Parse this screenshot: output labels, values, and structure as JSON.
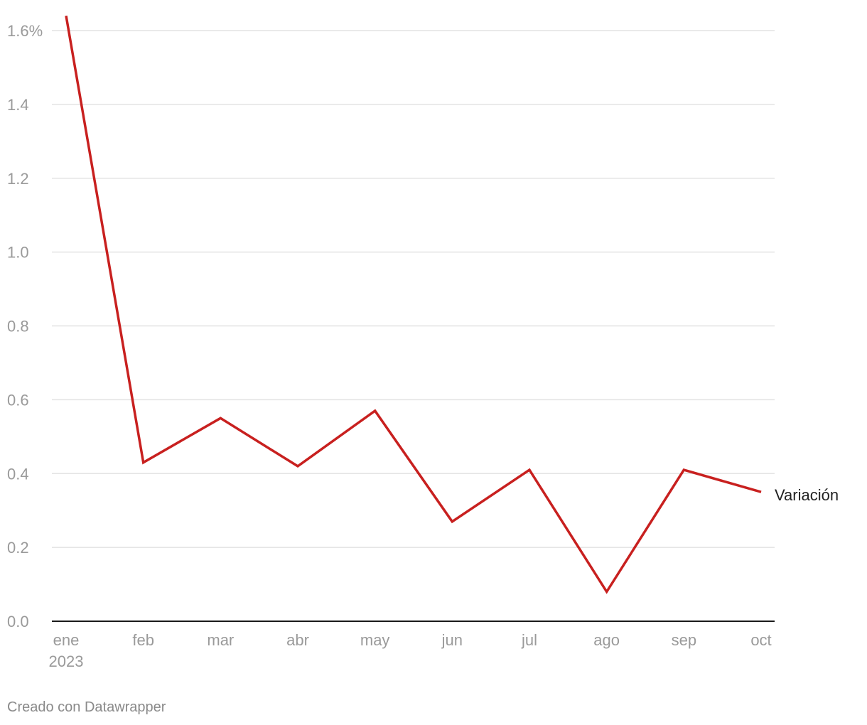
{
  "chart_data": {
    "type": "line",
    "categories": [
      "ene",
      "feb",
      "mar",
      "abr",
      "may",
      "jun",
      "jul",
      "ago",
      "sep",
      "oct"
    ],
    "year_label": "2023",
    "series": [
      {
        "name": "Variación",
        "color": "#c8201f",
        "values": [
          1.64,
          0.43,
          0.55,
          0.42,
          0.57,
          0.27,
          0.41,
          0.08,
          0.41,
          0.35
        ]
      }
    ],
    "yticks": [
      "0.0",
      "0.2",
      "0.4",
      "0.6",
      "0.8",
      "1.0",
      "1.2",
      "1.4",
      "1.6%"
    ],
    "ylim": [
      0,
      1.6
    ],
    "grid": true,
    "title": "",
    "xlabel": "",
    "ylabel": ""
  },
  "credit": "Creado con Datawrapper"
}
